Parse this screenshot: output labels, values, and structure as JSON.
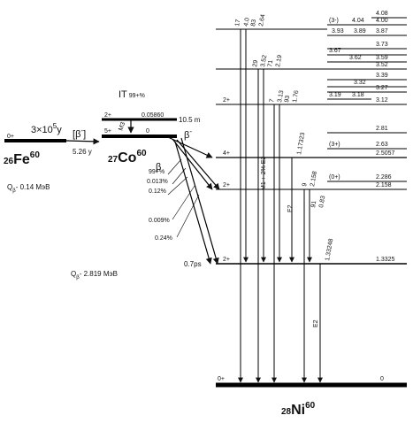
{
  "fe": {
    "half_life": "3×10",
    "half_life_exp": "5",
    "half_life_unit": "y",
    "decay_mode": "β",
    "decay_mode_sup": "-",
    "spin": "0+",
    "label_z": "26",
    "label_el": "Fe",
    "label_a": "60",
    "q_label": "Q",
    "q_sub": "β",
    "q_value": "- 0.14 MэВ"
  },
  "co_meta": {
    "spin": "2+",
    "energy": "0.05860",
    "half_life": "10.5 m",
    "it_label": "IT",
    "it_branch": "99+%",
    "m3_label": "M3"
  },
  "co": {
    "spin": "5+",
    "energy": "0",
    "half_life": "5.26 y",
    "label_z": "27",
    "label_el": "Co",
    "label_a": "60",
    "beta_label": "β",
    "beta_minus_label": "β",
    "beta_minus_sup": "-",
    "q_label": "Q",
    "q_sub": "β",
    "q_value": "- 2.819 MэВ",
    "branches": [
      "99+%",
      "0.013%",
      "0.12%",
      "0.009%",
      "0.24%"
    ]
  },
  "ni": {
    "label_z": "28",
    "label_el": "Ni",
    "label_a": "60",
    "ground_spin": "0+",
    "ground_energy": "0",
    "lifetime_2plus": "0.7ps",
    "levels_right": [
      "(3-)",
      "4.08",
      "4.04",
      "4.00",
      "3.93",
      "3.89",
      "3.87",
      "3.73",
      "3.67",
      "3.62",
      "3.59",
      "3.52",
      "3.39",
      "3.32",
      "3.27",
      "3.19",
      "3.18",
      "3.12",
      "2.81",
      "(3+)",
      "2.63",
      "2.5057",
      "(0+)",
      "2.286",
      "2.158",
      "1.3325"
    ],
    "left_spins": [
      "2+",
      "4+",
      "2+",
      "2+"
    ],
    "gamma_labels": [
      "17",
      "4.0",
      "83",
      "2.64",
      "29",
      "3.52",
      "71",
      "2.19",
      "7",
      "3.13",
      "93",
      "1.76",
      "1.17323",
      "9",
      "2.158",
      "91",
      "0.83",
      "1.33248"
    ],
    "multipolarities": [
      "M1 + 2% E2",
      "E2",
      "E2"
    ]
  }
}
